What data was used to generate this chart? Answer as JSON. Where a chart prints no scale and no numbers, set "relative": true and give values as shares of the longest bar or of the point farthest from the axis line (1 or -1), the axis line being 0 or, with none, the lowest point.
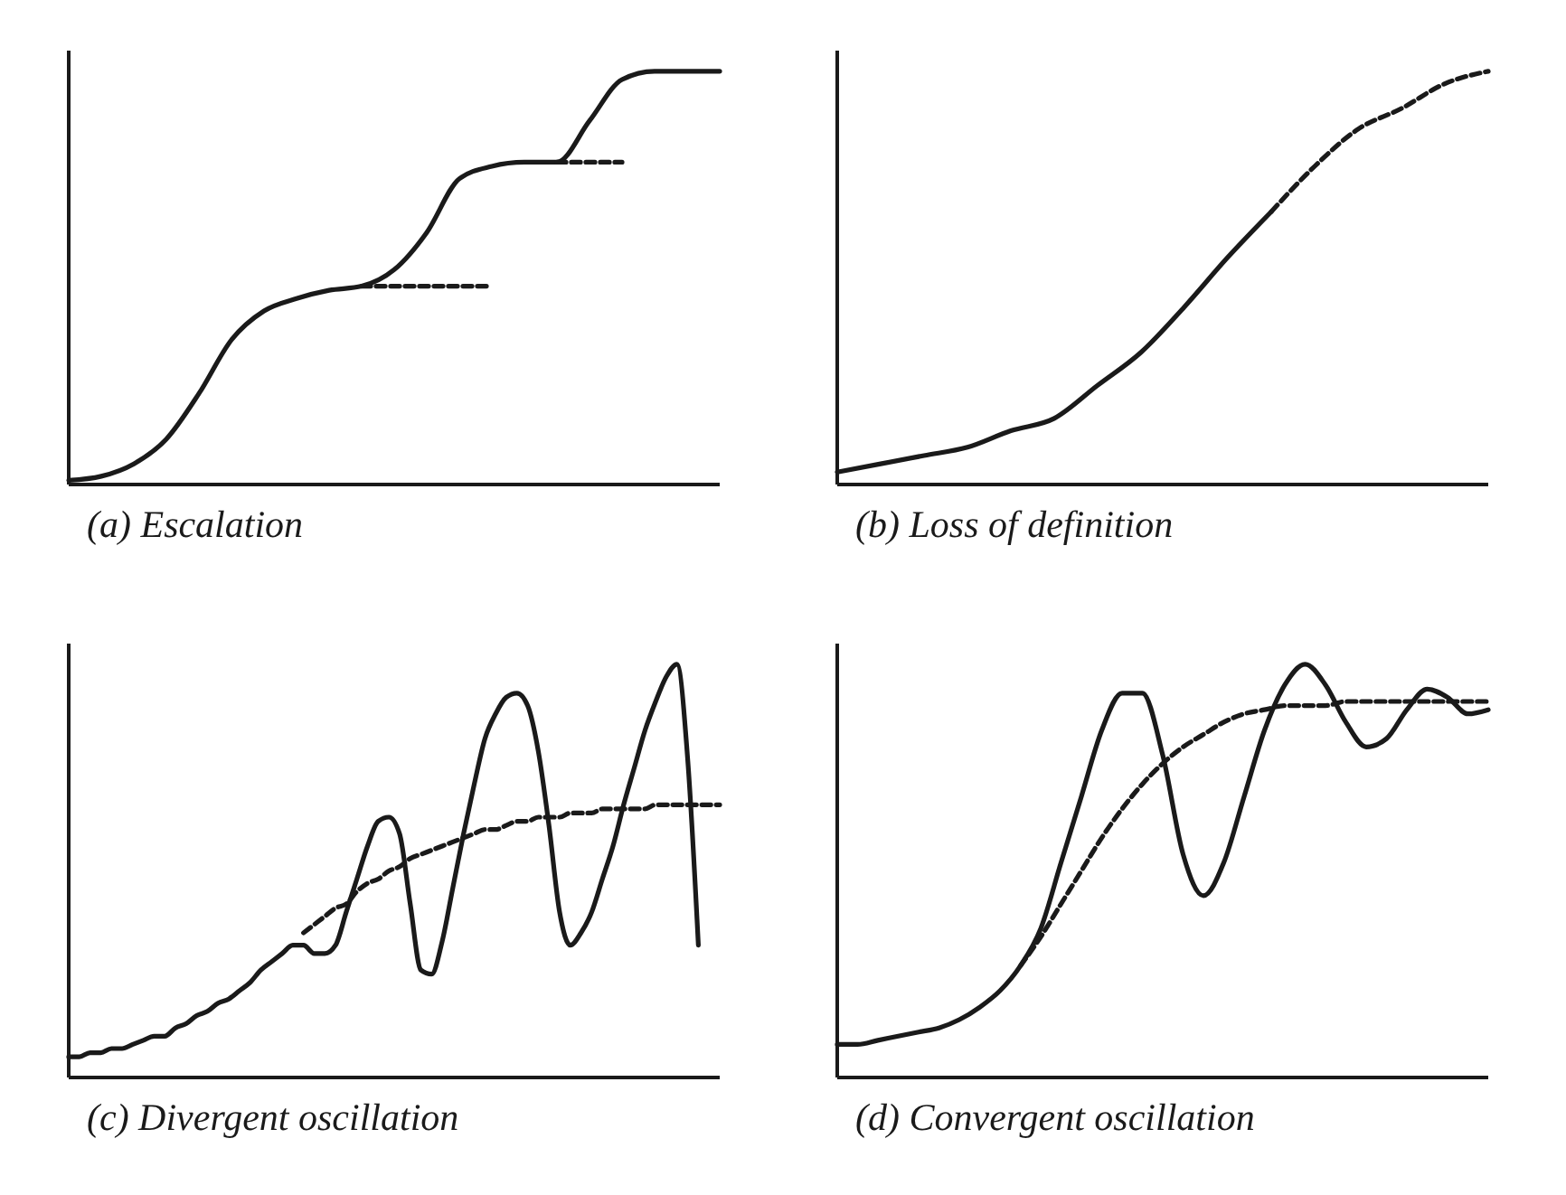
{
  "chart_data": [
    {
      "type": "line",
      "title": "(a) Escalation",
      "relative": true,
      "marker": "none",
      "categories": [
        null,
        null,
        null,
        null,
        null,
        null,
        null,
        null,
        null,
        null,
        null,
        null,
        null,
        null,
        null,
        null,
        null,
        null,
        null,
        null,
        null
      ],
      "series": [
        {
          "color": "#1a1a1a",
          "line_style": "solid",
          "values": [
            0.01,
            0.02,
            0.05,
            0.11,
            0.22,
            0.35,
            0.42,
            0.45,
            0.47,
            0.48,
            0.52,
            0.61,
            0.74,
            0.77,
            0.78,
            0.78,
            0.88,
            0.98,
            1,
            1,
            1
          ]
        },
        {
          "color": "#1a1a1a",
          "line_style": "dashed",
          "values": [
            null,
            null,
            null,
            null,
            null,
            null,
            null,
            null,
            null,
            0.48,
            0.48,
            0.48,
            0.48,
            0.48,
            null,
            null,
            null,
            null,
            null,
            null,
            null
          ]
        },
        {
          "color": "#1a1a1a",
          "line_style": "dashed",
          "values": [
            null,
            null,
            null,
            null,
            null,
            null,
            null,
            null,
            null,
            null,
            null,
            null,
            null,
            null,
            null,
            0.78,
            0.78,
            0.78,
            null,
            null,
            null
          ]
        }
      ]
    },
    {
      "type": "line",
      "title": "(b) Loss of definition",
      "relative": true,
      "marker": "none",
      "categories": [
        null,
        null,
        null,
        null,
        null,
        null,
        null,
        null,
        null,
        null,
        null,
        null,
        null,
        null,
        null,
        null
      ],
      "series": [
        {
          "color": "#1a1a1a",
          "line_style": "solid",
          "values": [
            0.03,
            0.05,
            0.07,
            0.09,
            0.13,
            0.16,
            0.24,
            0.32,
            0.43,
            0.55,
            0.66,
            null,
            null,
            null,
            null,
            null
          ]
        },
        {
          "color": "#1a1a1a",
          "line_style": "dashed",
          "values": [
            null,
            null,
            null,
            null,
            null,
            null,
            null,
            null,
            null,
            null,
            0.66,
            0.77,
            0.86,
            0.91,
            0.97,
            1
          ]
        }
      ]
    },
    {
      "type": "line",
      "title": "(c) Divergent oscillation",
      "relative": true,
      "marker": "none",
      "categories": [
        null,
        null,
        null,
        null,
        null,
        null,
        null,
        null,
        null,
        null,
        null,
        null,
        null,
        null,
        null,
        null,
        null,
        null,
        null,
        null,
        null,
        null,
        null,
        null,
        null,
        null,
        null,
        null,
        null,
        null,
        null,
        null,
        null,
        null,
        null,
        null,
        null,
        null,
        null,
        null,
        null,
        null,
        null,
        null,
        null,
        null,
        null,
        null,
        null,
        null,
        null,
        null,
        null,
        null,
        null,
        null,
        null,
        null,
        null,
        null,
        null,
        null
      ],
      "series": [
        {
          "color": "#1a1a1a",
          "line_style": "solid",
          "values": [
            0.05,
            0.05,
            0.06,
            0.06,
            0.07,
            0.07,
            0.08,
            0.09,
            0.1,
            0.1,
            0.12,
            0.13,
            0.15,
            0.16,
            0.18,
            0.19,
            0.21,
            0.23,
            0.26,
            0.28,
            0.3,
            0.32,
            0.32,
            0.3,
            0.3,
            0.32,
            0.4,
            0.48,
            0.56,
            0.62,
            0.63,
            0.59,
            0.42,
            0.26,
            0.25,
            0.33,
            0.46,
            0.59,
            0.71,
            0.82,
            0.88,
            0.92,
            0.93,
            0.9,
            0.79,
            0.61,
            0.4,
            0.32,
            0.35,
            0.4,
            0.48,
            0.56,
            0.66,
            0.75,
            0.84,
            0.91,
            0.97,
            1,
            0.77,
            0.32,
            null,
            null
          ]
        },
        {
          "color": "#1a1a1a",
          "line_style": "dashed",
          "values": [
            null,
            null,
            null,
            null,
            null,
            null,
            null,
            null,
            null,
            null,
            null,
            null,
            null,
            null,
            null,
            null,
            null,
            null,
            null,
            null,
            null,
            null,
            0.35,
            0.37,
            0.39,
            0.41,
            0.42,
            0.45,
            0.47,
            0.48,
            0.5,
            0.51,
            0.53,
            0.54,
            0.55,
            0.56,
            0.57,
            0.58,
            0.59,
            0.6,
            0.6,
            0.61,
            0.62,
            0.62,
            0.63,
            0.63,
            0.63,
            0.64,
            0.64,
            0.64,
            0.65,
            0.65,
            0.65,
            0.65,
            0.65,
            0.66,
            0.66,
            0.66,
            0.66,
            0.66,
            0.66,
            0.66
          ]
        }
      ]
    },
    {
      "type": "line",
      "title": "(d) Convergent oscillation",
      "relative": true,
      "marker": "none",
      "categories": [
        null,
        null,
        null,
        null,
        null,
        null,
        null,
        null,
        null,
        null,
        null,
        null,
        null,
        null,
        null,
        null,
        null,
        null,
        null,
        null,
        null,
        null,
        null,
        null,
        null,
        null,
        null,
        null,
        null,
        null,
        null,
        null,
        null
      ],
      "series": [
        {
          "color": "#1a1a1a",
          "line_style": "solid",
          "values": [
            0.08,
            0.08,
            0.09,
            0.1,
            0.11,
            0.12,
            0.14,
            0.17,
            0.21,
            0.27,
            0.36,
            0.52,
            0.68,
            0.84,
            0.93,
            0.93,
            0.78,
            0.54,
            0.44,
            0.52,
            0.68,
            0.84,
            0.95,
            1,
            0.95,
            0.86,
            0.8,
            0.82,
            0.89,
            0.94,
            0.92,
            0.88,
            0.89
          ]
        },
        {
          "color": "#1a1a1a",
          "line_style": "dashed",
          "values": [
            null,
            null,
            null,
            null,
            null,
            null,
            null,
            null,
            null,
            0.27,
            0.34,
            0.42,
            0.5,
            0.58,
            0.65,
            0.71,
            0.76,
            0.8,
            0.83,
            0.86,
            0.88,
            0.89,
            0.9,
            0.9,
            0.9,
            0.91,
            0.91,
            0.91,
            0.91,
            0.91,
            0.91,
            0.91,
            0.91
          ]
        }
      ]
    }
  ]
}
